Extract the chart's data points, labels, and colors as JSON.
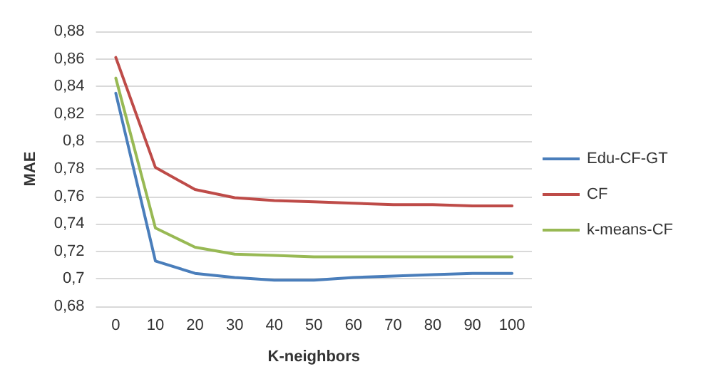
{
  "chart_data": {
    "type": "line",
    "xlabel": "K-neighbors",
    "ylabel": "MAE",
    "categories": [
      "0",
      "10",
      "20",
      "30",
      "40",
      "50",
      "60",
      "70",
      "80",
      "90",
      "100"
    ],
    "series": [
      {
        "name": "Edu-CF-GT",
        "color": "#4a7ebb",
        "values": [
          0.835,
          0.713,
          0.704,
          0.701,
          0.699,
          0.699,
          0.701,
          0.702,
          0.703,
          0.704,
          0.704
        ]
      },
      {
        "name": "CF",
        "color": "#be4b48",
        "values": [
          0.861,
          0.781,
          0.765,
          0.759,
          0.757,
          0.756,
          0.755,
          0.754,
          0.754,
          0.753,
          0.753
        ]
      },
      {
        "name": "k-means-CF",
        "color": "#98b954",
        "values": [
          0.846,
          0.737,
          0.723,
          0.718,
          0.717,
          0.716,
          0.716,
          0.716,
          0.716,
          0.716,
          0.716
        ]
      }
    ],
    "ylim": [
      0.68,
      0.88
    ],
    "yticks": [
      {
        "value": 0.68,
        "label": "0,68"
      },
      {
        "value": 0.7,
        "label": "0,7"
      },
      {
        "value": 0.72,
        "label": "0,72"
      },
      {
        "value": 0.74,
        "label": "0,74"
      },
      {
        "value": 0.76,
        "label": "0,76"
      },
      {
        "value": 0.78,
        "label": "0,78"
      },
      {
        "value": 0.8,
        "label": "0,8"
      },
      {
        "value": 0.82,
        "label": "0,82"
      },
      {
        "value": 0.84,
        "label": "0,84"
      },
      {
        "value": 0.86,
        "label": "0,86"
      },
      {
        "value": 0.88,
        "label": "0,88"
      }
    ],
    "grid": "y",
    "legend": "right",
    "marker": "none",
    "line_style": "solid"
  }
}
